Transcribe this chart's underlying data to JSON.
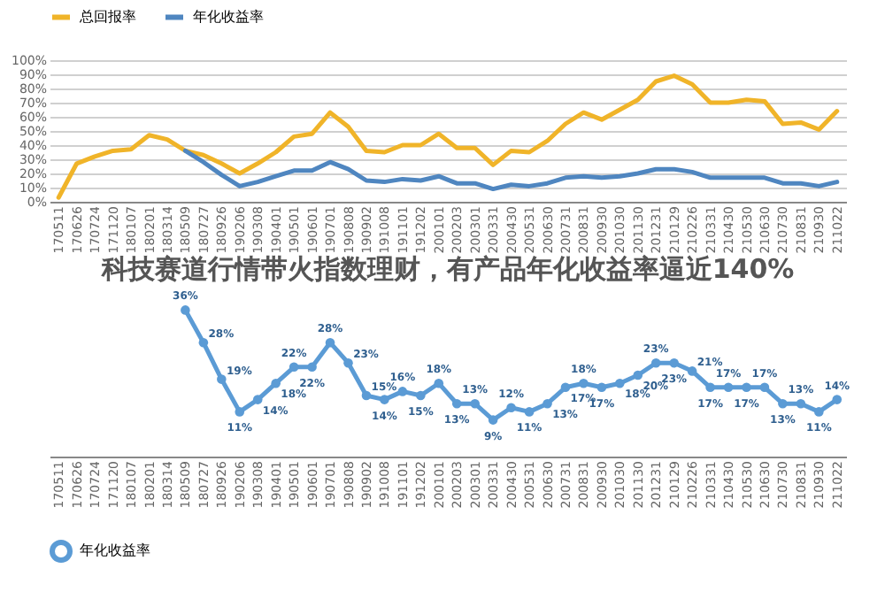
{
  "chart_data": [
    {
      "type": "line",
      "categories": [
        "170511",
        "170626",
        "170724",
        "171120",
        "180107",
        "180201",
        "180314",
        "180509",
        "180727",
        "180926",
        "190206",
        "190308",
        "190401",
        "190501",
        "190601",
        "190701",
        "190808",
        "190902",
        "191008",
        "191101",
        "191202",
        "200101",
        "200203",
        "200301",
        "200331",
        "200430",
        "200531",
        "200630",
        "200731",
        "200831",
        "200930",
        "201030",
        "201130",
        "201231",
        "210129",
        "210226",
        "210331",
        "210430",
        "210530",
        "210630",
        "210730",
        "210831",
        "210930",
        "211022"
      ],
      "series": [
        {
          "name": "总回报率",
          "color": "#f0b429",
          "values": [
            3,
            27,
            32,
            36,
            37,
            47,
            44,
            36,
            33,
            27,
            20,
            27,
            35,
            46,
            48,
            63,
            53,
            36,
            35,
            40,
            40,
            48,
            38,
            38,
            26,
            36,
            35,
            43,
            55,
            63,
            58,
            65,
            72,
            85,
            89,
            83,
            70,
            70,
            72,
            71,
            55,
            56,
            51,
            64
          ]
        },
        {
          "name": "年化收益率",
          "color": "#4f86c0",
          "values": [
            null,
            null,
            null,
            null,
            null,
            null,
            null,
            36,
            28,
            19,
            11,
            14,
            18,
            22,
            22,
            28,
            23,
            15,
            14,
            16,
            15,
            18,
            13,
            13,
            9,
            12,
            11,
            13,
            17,
            18,
            17,
            18,
            20,
            23,
            23,
            21,
            17,
            17,
            17,
            17,
            13,
            13,
            11,
            14
          ]
        }
      ],
      "ylim": [
        0,
        100
      ],
      "yticks": [
        {
          "value": 0,
          "label": "0%"
        },
        {
          "value": 10,
          "label": "10%"
        },
        {
          "value": 20,
          "label": "20%"
        },
        {
          "value": 30,
          "label": "30%"
        },
        {
          "value": 40,
          "label": "40%"
        },
        {
          "value": 50,
          "label": "50%"
        },
        {
          "value": 60,
          "label": "60%"
        },
        {
          "value": 70,
          "label": "70%"
        },
        {
          "value": 80,
          "label": "80%"
        },
        {
          "value": 90,
          "label": "90%"
        },
        {
          "value": 100,
          "label": "100%"
        }
      ],
      "grid": "y",
      "legend": "top",
      "marker": "none"
    },
    {
      "type": "line",
      "title": "科技赛道行情带火指数理财，有产品年化收益率逼近140%",
      "categories": [
        "170511",
        "170626",
        "170724",
        "171120",
        "180107",
        "180201",
        "180314",
        "180509",
        "180727",
        "180926",
        "190206",
        "190308",
        "190401",
        "190501",
        "190601",
        "190701",
        "190808",
        "190902",
        "191008",
        "191101",
        "191202",
        "200101",
        "200203",
        "200301",
        "200331",
        "200430",
        "200531",
        "200630",
        "200731",
        "200831",
        "200930",
        "201030",
        "201130",
        "201231",
        "210129",
        "210226",
        "210331",
        "210430",
        "210530",
        "210630",
        "210730",
        "210831",
        "210930",
        "211022"
      ],
      "series": [
        {
          "name": "年化收益率",
          "color": "#5b9bd5",
          "values": [
            null,
            null,
            null,
            null,
            null,
            null,
            null,
            36,
            28,
            19,
            11,
            14,
            18,
            22,
            22,
            28,
            23,
            15,
            14,
            16,
            15,
            18,
            13,
            13,
            9,
            12,
            11,
            13,
            17,
            18,
            17,
            18,
            20,
            23,
            23,
            21,
            17,
            17,
            17,
            17,
            13,
            13,
            11,
            14
          ],
          "value_labels": [
            null,
            null,
            null,
            null,
            null,
            null,
            null,
            "36%",
            "28%",
            "19%",
            "11%",
            "14%",
            "18%",
            "22%",
            "22%",
            "28%",
            "23%",
            "15%",
            "14%",
            "16%",
            "15%",
            "18%",
            "13%",
            "13%",
            "9%",
            "12%",
            "11%",
            "13%",
            "17%",
            "18%",
            "17%",
            "18%",
            "20%",
            "23%",
            "23%",
            "21%",
            "17%",
            "17%",
            "17%",
            "17%",
            "13%",
            "13%",
            "11%",
            "14%"
          ]
        }
      ],
      "tick_labels": "x",
      "legend": "bottom",
      "marker": "circle"
    }
  ]
}
